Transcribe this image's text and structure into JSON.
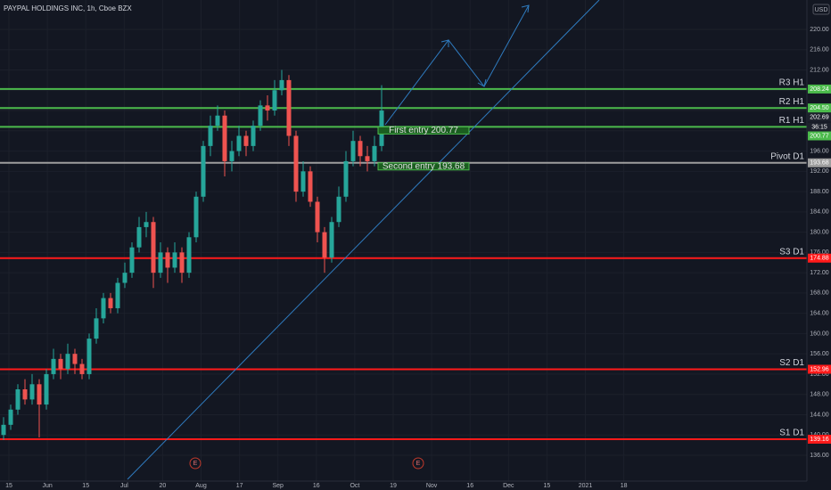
{
  "chart_data": {
    "type": "candlestick",
    "title": "PAYPAL HOLDINGS INC, 1h, Cboe BZX",
    "currency": "USD",
    "up_color": "#26a69a",
    "down_color": "#ef5350",
    "grid": true,
    "ylim": [
      131.25,
      225.8
    ],
    "yticks": [
      {
        "value": 136,
        "label": "136.00"
      },
      {
        "value": 140,
        "label": "140.00"
      },
      {
        "value": 144,
        "label": "144.00"
      },
      {
        "value": 148,
        "label": "148.00"
      },
      {
        "value": 152,
        "label": "152.00"
      },
      {
        "value": 156,
        "label": "156.00"
      },
      {
        "value": 160,
        "label": "160.00"
      },
      {
        "value": 164,
        "label": "164.00"
      },
      {
        "value": 168,
        "label": "168.00"
      },
      {
        "value": 172,
        "label": "172.00"
      },
      {
        "value": 176,
        "label": "176.00"
      },
      {
        "value": 180,
        "label": "180.00"
      },
      {
        "value": 184,
        "label": "184.00"
      },
      {
        "value": 188,
        "label": "188.00"
      },
      {
        "value": 192,
        "label": "192.00"
      },
      {
        "value": 196,
        "label": "196.00"
      },
      {
        "value": 200,
        "label": "200.00"
      },
      {
        "value": 204,
        "label": "204.00"
      },
      {
        "value": 208,
        "label": "208.00"
      },
      {
        "value": 212,
        "label": "212.00"
      },
      {
        "value": 216,
        "label": "216.00"
      },
      {
        "value": 220,
        "label": "220.00"
      }
    ],
    "x_labels": [
      "15",
      "Jun",
      "15",
      "Jul",
      "20",
      "Aug",
      "17",
      "Sep",
      "16",
      "Oct",
      "19",
      "Nov",
      "16",
      "Dec",
      "15",
      "2021",
      "18"
    ],
    "candles": [
      {
        "o": 140,
        "h": 143.5,
        "l": 139,
        "c": 142
      },
      {
        "o": 142,
        "h": 146,
        "l": 141,
        "c": 145
      },
      {
        "o": 145,
        "h": 150,
        "l": 144,
        "c": 149
      },
      {
        "o": 149,
        "h": 151,
        "l": 146,
        "c": 147
      },
      {
        "o": 147,
        "h": 152,
        "l": 146,
        "c": 150
      },
      {
        "o": 150,
        "h": 151,
        "l": 139.5,
        "c": 146
      },
      {
        "o": 146,
        "h": 153,
        "l": 145,
        "c": 152
      },
      {
        "o": 152,
        "h": 157,
        "l": 151,
        "c": 155
      },
      {
        "o": 155,
        "h": 156,
        "l": 151,
        "c": 153
      },
      {
        "o": 153,
        "h": 158,
        "l": 152,
        "c": 156
      },
      {
        "o": 156,
        "h": 157,
        "l": 152,
        "c": 154
      },
      {
        "o": 154,
        "h": 155,
        "l": 151,
        "c": 152
      },
      {
        "o": 152,
        "h": 160,
        "l": 151,
        "c": 159
      },
      {
        "o": 159,
        "h": 165,
        "l": 158,
        "c": 163
      },
      {
        "o": 163,
        "h": 168,
        "l": 162,
        "c": 167
      },
      {
        "o": 167,
        "h": 168,
        "l": 164,
        "c": 165
      },
      {
        "o": 165,
        "h": 171,
        "l": 164,
        "c": 170
      },
      {
        "o": 170,
        "h": 174,
        "l": 169,
        "c": 172
      },
      {
        "o": 172,
        "h": 178,
        "l": 171,
        "c": 177
      },
      {
        "o": 177,
        "h": 183,
        "l": 176,
        "c": 181
      },
      {
        "o": 181,
        "h": 184,
        "l": 179,
        "c": 182
      },
      {
        "o": 182,
        "h": 183,
        "l": 169,
        "c": 172
      },
      {
        "o": 172,
        "h": 178,
        "l": 171,
        "c": 176
      },
      {
        "o": 176,
        "h": 177,
        "l": 170,
        "c": 173
      },
      {
        "o": 173,
        "h": 178,
        "l": 172,
        "c": 176
      },
      {
        "o": 176,
        "h": 177,
        "l": 170,
        "c": 172
      },
      {
        "o": 172,
        "h": 180,
        "l": 171,
        "c": 179
      },
      {
        "o": 179,
        "h": 188,
        "l": 178,
        "c": 187
      },
      {
        "o": 187,
        "h": 198,
        "l": 186,
        "c": 197
      },
      {
        "o": 197,
        "h": 203,
        "l": 195,
        "c": 201
      },
      {
        "o": 201,
        "h": 205,
        "l": 200,
        "c": 203
      },
      {
        "o": 203,
        "h": 204,
        "l": 191,
        "c": 194
      },
      {
        "o": 194,
        "h": 198,
        "l": 192,
        "c": 196
      },
      {
        "o": 196,
        "h": 201,
        "l": 195,
        "c": 199
      },
      {
        "o": 199,
        "h": 200,
        "l": 195,
        "c": 197
      },
      {
        "o": 197,
        "h": 202,
        "l": 196,
        "c": 201
      },
      {
        "o": 201,
        "h": 206,
        "l": 200,
        "c": 205
      },
      {
        "o": 205,
        "h": 207,
        "l": 202,
        "c": 204
      },
      {
        "o": 204,
        "h": 210,
        "l": 203,
        "c": 208
      },
      {
        "o": 208,
        "h": 212,
        "l": 207,
        "c": 210
      },
      {
        "o": 210,
        "h": 211,
        "l": 197,
        "c": 199
      },
      {
        "o": 199,
        "h": 200,
        "l": 186,
        "c": 188
      },
      {
        "o": 188,
        "h": 194,
        "l": 187,
        "c": 192
      },
      {
        "o": 192,
        "h": 193,
        "l": 185,
        "c": 186
      },
      {
        "o": 186,
        "h": 187,
        "l": 178,
        "c": 180
      },
      {
        "o": 180,
        "h": 181,
        "l": 172,
        "c": 175
      },
      {
        "o": 175,
        "h": 183,
        "l": 174,
        "c": 182
      },
      {
        "o": 182,
        "h": 189,
        "l": 181,
        "c": 187
      },
      {
        "o": 187,
        "h": 196,
        "l": 186,
        "c": 194
      },
      {
        "o": 194,
        "h": 200,
        "l": 193,
        "c": 198
      },
      {
        "o": 198,
        "h": 199,
        "l": 193,
        "c": 195
      },
      {
        "o": 195,
        "h": 197,
        "l": 192,
        "c": 194
      },
      {
        "o": 194,
        "h": 199,
        "l": 193,
        "c": 197
      },
      {
        "o": 197,
        "h": 209,
        "l": 196,
        "c": 204
      }
    ],
    "levels": [
      {
        "name": "R3 H1",
        "value": 208.24,
        "label": "208.24",
        "color": "#4cbb4c"
      },
      {
        "name": "R2 H1",
        "value": 204.5,
        "label": "204.50",
        "color": "#4cbb4c"
      },
      {
        "name": "R1 H1",
        "value": 200.77,
        "label": "200.77",
        "color": "#4cbb4c"
      },
      {
        "name": "Pivot D1",
        "value": 193.68,
        "label": "193.68",
        "color": "#9e9e9e"
      },
      {
        "name": "S3 D1",
        "value": 174.88,
        "label": "174.88",
        "color": "#ff1a1a"
      },
      {
        "name": "S2 D1",
        "value": 152.96,
        "label": "152.96",
        "color": "#ff1a1a"
      },
      {
        "name": "S1 D1",
        "value": 139.16,
        "label": "139.16",
        "color": "#ff1a1a"
      }
    ],
    "last_price": {
      "value": 202.69,
      "label": "202.69",
      "countdown": "36:15"
    },
    "entries": [
      {
        "text": "First entry 200.77",
        "value": 200.77
      },
      {
        "text": "Second entry 193.68",
        "value": 193.68
      }
    ],
    "events": [
      "E",
      "E"
    ]
  }
}
